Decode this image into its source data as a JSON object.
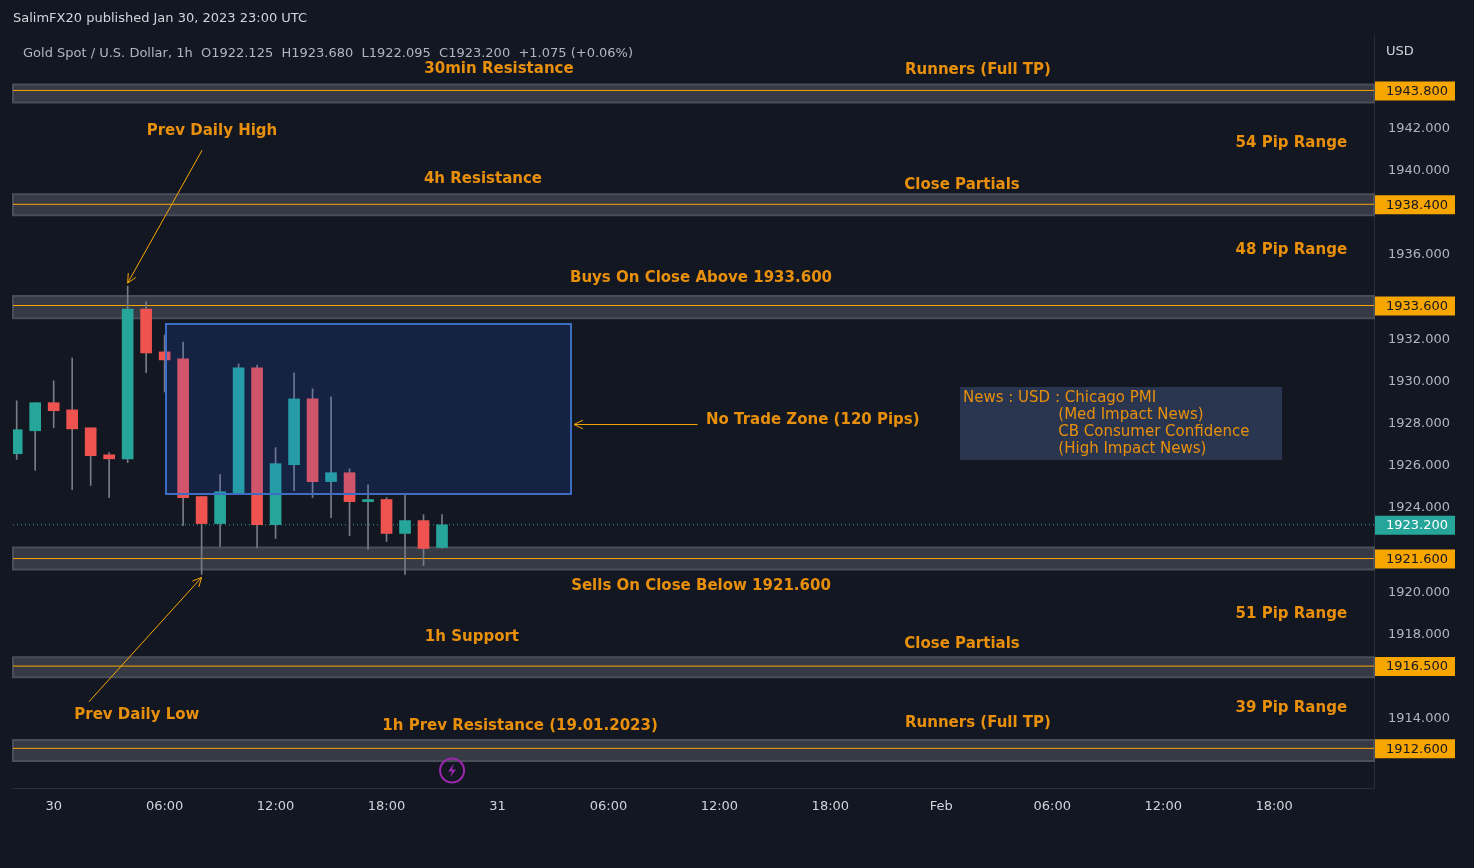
{
  "chart_data": {
    "type": "candlestick",
    "title": "SalimFX20 published Jan 30, 2023 23:00 UTC",
    "subtitle": "Gold Spot / U.S. Dollar, 1h  O1922.125  H1923.680  L1922.095  C1923.200  +1.075 (+0.06%)",
    "ylabel": "USD",
    "x": [
      "2023-01-29T22:00",
      "2023-01-29T23:00",
      "2023-01-30T00:00",
      "2023-01-30T01:00",
      "2023-01-30T02:00",
      "2023-01-30T03:00",
      "2023-01-30T04:00",
      "2023-01-30T05:00",
      "2023-01-30T06:00",
      "2023-01-30T07:00",
      "2023-01-30T08:00",
      "2023-01-30T09:00",
      "2023-01-30T10:00",
      "2023-01-30T11:00",
      "2023-01-30T12:00",
      "2023-01-30T13:00",
      "2023-01-30T14:00",
      "2023-01-30T15:00",
      "2023-01-30T16:00",
      "2023-01-30T17:00",
      "2023-01-30T18:00",
      "2023-01-30T19:00",
      "2023-01-30T20:00",
      "2023-01-30T21:00"
    ],
    "ohlc": [
      [
        1926.57,
        1929.08,
        1926.3,
        1927.71
      ],
      [
        1927.66,
        1928.99,
        1925.78,
        1928.99
      ],
      [
        1928.99,
        1930.03,
        1927.8,
        1928.61
      ],
      [
        1928.65,
        1931.11,
        1924.87,
        1927.75
      ],
      [
        1927.8,
        1927.8,
        1925.07,
        1926.48
      ],
      [
        1926.52,
        1926.62,
        1924.49,
        1926.33
      ],
      [
        1926.33,
        1934.52,
        1926.15,
        1933.43
      ],
      [
        1933.43,
        1933.77,
        1930.41,
        1931.35
      ],
      [
        1931.4,
        1932.2,
        1929.5,
        1931.02
      ],
      [
        1931.07,
        1931.87,
        1923.16,
        1924.49
      ],
      [
        1924.54,
        1924.54,
        1920.85,
        1923.26
      ],
      [
        1923.26,
        1925.58,
        1922.17,
        1924.77
      ],
      [
        1924.73,
        1930.83,
        1924.63,
        1930.64
      ],
      [
        1930.64,
        1930.78,
        1922.12,
        1923.21
      ],
      [
        1923.21,
        1926.86,
        1922.55,
        1926.1
      ],
      [
        1926.05,
        1930.41,
        1924.82,
        1929.17
      ],
      [
        1929.17,
        1929.65,
        1924.49,
        1925.25
      ],
      [
        1925.25,
        1929.27,
        1923.54,
        1925.67
      ],
      [
        1925.67,
        1925.86,
        1922.69,
        1924.3
      ],
      [
        1924.3,
        1925.1,
        1922.03,
        1924.4
      ],
      [
        1924.4,
        1924.49,
        1922.41,
        1922.79
      ],
      [
        1922.79,
        1924.68,
        1920.85,
        1923.4
      ],
      [
        1923.4,
        1923.68,
        1921.27,
        1922.08
      ],
      [
        1922.125,
        1923.68,
        1922.095,
        1923.2
      ]
    ],
    "colors": [
      "#26a69a",
      "#26a69a",
      "#ef5350",
      "#ef5350",
      "#ef5350",
      "#ef5350",
      "#26a69a",
      "#ef5350",
      "#ef5350",
      "#ef5350",
      "#ef5350",
      "#26a69a",
      "#26a69a",
      "#ef5350",
      "#26a69a",
      "#26a69a",
      "#ef5350",
      "#26a69a",
      "#ef5350",
      "#26a69a",
      "#ef5350",
      "#26a69a",
      "#ef5350",
      "#26a69a"
    ],
    "xlim": [
      "2023-01-29T21:48",
      "2023-02-01T23:24"
    ],
    "xticks": [
      {
        "value": "2023-01-30T00:00",
        "label": "30"
      },
      {
        "value": "2023-01-30T06:00",
        "label": "06:00"
      },
      {
        "value": "2023-01-30T12:00",
        "label": "12:00"
      },
      {
        "value": "2023-01-30T18:00",
        "label": "18:00"
      },
      {
        "value": "2023-01-31T00:00",
        "label": "31"
      },
      {
        "value": "2023-01-31T06:00",
        "label": "06:00"
      },
      {
        "value": "2023-01-31T12:00",
        "label": "12:00"
      },
      {
        "value": "2023-01-31T18:00",
        "label": "18:00"
      },
      {
        "value": "2023-02-01T00:00",
        "label": "Feb"
      },
      {
        "value": "2023-02-01T06:00",
        "label": "06:00"
      },
      {
        "value": "2023-02-01T12:00",
        "label": "12:00"
      },
      {
        "value": "2023-02-01T18:00",
        "label": "18:00"
      }
    ],
    "ylim": [
      1910.7,
      1946.4
    ],
    "yticks": [
      {
        "value": 1914,
        "label": "1914.000"
      },
      {
        "value": 1918,
        "label": "1918.000"
      },
      {
        "value": 1920,
        "label": "1920.000"
      },
      {
        "value": 1924,
        "label": "1924.000"
      },
      {
        "value": 1926,
        "label": "1926.000"
      },
      {
        "value": 1928,
        "label": "1928.000"
      },
      {
        "value": 1930,
        "label": "1930.000"
      },
      {
        "value": 1932,
        "label": "1932.000"
      },
      {
        "value": 1936,
        "label": "1936.000"
      },
      {
        "value": 1940,
        "label": "1940.000"
      },
      {
        "value": 1942,
        "label": "1942.000"
      }
    ],
    "bands": [
      {
        "axis": "y",
        "from": 1943.23,
        "to": 1944.08,
        "color": "#363a45"
      },
      {
        "axis": "y",
        "from": 1937.88,
        "to": 1938.88,
        "color": "#363a45"
      },
      {
        "axis": "y",
        "from": 1933.0,
        "to": 1934.05,
        "color": "#363a45"
      },
      {
        "axis": "y",
        "from": 1921.08,
        "to": 1922.12,
        "color": "#363a45"
      },
      {
        "axis": "y",
        "from": 1915.97,
        "to": 1916.92,
        "color": "#363a45"
      },
      {
        "axis": "y",
        "from": 1912.0,
        "to": 1912.99,
        "color": "#363a45"
      }
    ],
    "ref_lines": [
      {
        "axis": "y",
        "value": 1943.8,
        "label": "1943.800",
        "color": "#f7a600"
      },
      {
        "axis": "y",
        "value": 1938.4,
        "label": "1938.400",
        "color": "#f7a600"
      },
      {
        "axis": "y",
        "value": 1933.6,
        "label": "1933.600",
        "color": "#f7a600"
      },
      {
        "axis": "y",
        "value": 1923.2,
        "label": "1923.200",
        "color": "#26a69a",
        "line_style": "dotted"
      },
      {
        "axis": "y",
        "value": 1921.6,
        "label": "1921.600",
        "color": "#f7a600"
      },
      {
        "axis": "y",
        "value": 1916.5,
        "label": "1916.500",
        "color": "#f7a600"
      },
      {
        "axis": "y",
        "value": 1912.6,
        "label": "1912.600",
        "color": "#f7a600"
      }
    ],
    "annotations": [
      "30min Resistance",
      "Runners (Full TP)",
      {
        "text": "Prev Daily High",
        "x": "2023-01-30T04:00",
        "y": 1934.52
      },
      "54 Pip Range",
      "4h Resistance",
      "Close Partials",
      "48 Pip Range",
      "Buys On Close Above 1933.600",
      "No Trade Zone (120 Pips)",
      "Sells On Close Below 1921.600",
      "51 Pip Range",
      "1h Support",
      "Close Partials",
      {
        "text": "Prev Daily Low",
        "x": "2023-01-30T08:00",
        "y": 1920.85
      },
      "39 Pip Range",
      "1h Prev Resistance (19.01.2023)",
      "Runners (Full TP)",
      "News : USD : Chicago PMI\n                    (Med Impact News)\n                    CB Consumer Confidence\n                    (High Impact News)"
    ],
    "grid": false,
    "legend": false
  }
}
